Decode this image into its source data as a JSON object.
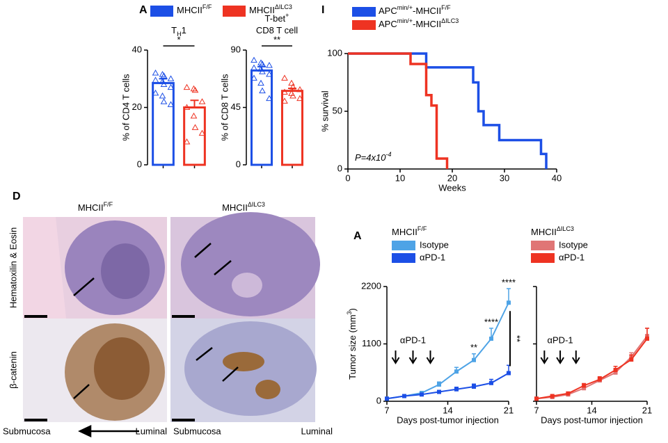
{
  "panel_labels": [
    "A",
    "I",
    "D",
    "A"
  ],
  "histology": {
    "columns": [
      [
        "MHCII",
        "F/F"
      ],
      [
        "MHCII",
        "ΔILC3"
      ]
    ],
    "rows": [
      "Hematoxilin & Eosin",
      "β-catenin"
    ],
    "orientation": [
      "Submucosa",
      "Luminal"
    ]
  },
  "chart_data": [
    {
      "type": "bar",
      "title": [
        [
          "T",
          "H",
          "1"
        ]
      ],
      "title_script": "sub",
      "ylabel": "% of CD4 T cells",
      "ylim": [
        0,
        40
      ],
      "yticks": [
        0,
        20,
        40
      ],
      "significance": "*",
      "legend": true,
      "series": [
        {
          "name": [
            "MHCII",
            "F/F"
          ],
          "color": "#1c4fe6",
          "values": [
            28.5
          ],
          "errors": [
            1.5
          ],
          "points": [
            32,
            31.5,
            31,
            30,
            29.5,
            29,
            28,
            27,
            25,
            24,
            22,
            21
          ]
        },
        {
          "name": [
            "MHCII",
            "ΔILC3"
          ],
          "color": "#ee3322",
          "values": [
            20
          ],
          "errors": [
            2.5
          ],
          "points": [
            27,
            26.5,
            26,
            22,
            20,
            17,
            13,
            11,
            8
          ]
        }
      ]
    },
    {
      "type": "bar",
      "title": [
        [
          "T-bet",
          "+"
        ],
        [
          "CD8 T cell"
        ]
      ],
      "title_script": "super",
      "ylabel": "% of CD8 T cells",
      "ylim": [
        0,
        90
      ],
      "yticks": [
        0,
        45,
        90
      ],
      "significance": "**",
      "legend": false,
      "series": [
        {
          "color": "#1c4fe6",
          "values": [
            74
          ],
          "errors": [
            3
          ],
          "points": [
            82,
            80,
            79,
            78,
            76,
            75,
            73,
            71,
            68,
            64,
            58,
            52
          ]
        },
        {
          "color": "#ee3322",
          "values": [
            58
          ],
          "errors": [
            2
          ],
          "points": [
            68,
            64,
            61,
            59,
            57,
            56,
            54,
            52,
            50
          ]
        }
      ]
    },
    {
      "type": "step",
      "xlabel": "Weeks",
      "ylabel": "% survival",
      "xlim": [
        0,
        40
      ],
      "xticks": [
        0,
        10,
        20,
        30,
        40
      ],
      "ylim": [
        0,
        100
      ],
      "yticks": [
        0,
        50,
        100
      ],
      "annotation": [
        "P=4x10",
        "-4"
      ],
      "series": [
        {
          "name": [
            "APC",
            "min/+",
            "-MHCII",
            "F/F"
          ],
          "color": "#1c4fe6",
          "x": [
            0,
            15,
            24,
            25,
            26,
            29,
            37,
            38
          ],
          "values": [
            100,
            88,
            75,
            50,
            38,
            25,
            13,
            0
          ]
        },
        {
          "name": [
            "APC",
            "min/+",
            "-MHCII",
            "ΔILC3"
          ],
          "color": "#ee3322",
          "x": [
            0,
            12,
            15,
            16,
            17,
            19
          ],
          "values": [
            100,
            91,
            64,
            55,
            9,
            0
          ]
        }
      ]
    },
    {
      "type": "line",
      "legend_title": [
        "MHCII",
        "F/F"
      ],
      "xlabel": "Days post-tumor injection",
      "ylabel": [
        "Tumor size (mm",
        "3",
        ")"
      ],
      "xlim": [
        7,
        21
      ],
      "xticks": [
        7,
        14,
        21
      ],
      "ylim": [
        0,
        2200
      ],
      "yticks": [
        0,
        1100,
        2200
      ],
      "show_ytick_labels": true,
      "treatment_label": "αPD-1",
      "treatment_days": [
        8,
        10,
        12
      ],
      "annotations": [
        {
          "x": 17,
          "text": "**"
        },
        {
          "x": 19,
          "text": "****"
        },
        {
          "x": 21,
          "text": "****"
        }
      ],
      "comparison_label": "**",
      "series": [
        {
          "name": "Isotype",
          "color": "#4ea3e6",
          "x": [
            7,
            9,
            11,
            13,
            15,
            17,
            19,
            21
          ],
          "values": [
            50,
            100,
            160,
            320,
            570,
            790,
            1200,
            1890
          ],
          "errors": [
            20,
            20,
            30,
            50,
            80,
            120,
            200,
            270
          ]
        },
        {
          "name": "αPD-1",
          "color": "#1c4fe6",
          "x": [
            7,
            9,
            11,
            13,
            15,
            17,
            19,
            21
          ],
          "values": [
            50,
            100,
            130,
            180,
            230,
            280,
            350,
            540
          ],
          "errors": [
            10,
            15,
            20,
            30,
            40,
            50,
            70,
            150
          ]
        }
      ]
    },
    {
      "type": "line",
      "legend_title": [
        "MHCII",
        "ΔILC3"
      ],
      "xlabel": "Days post-tumor injection",
      "xlim": [
        7,
        21
      ],
      "xticks": [
        7,
        14,
        21
      ],
      "ylim": [
        0,
        2200
      ],
      "yticks": [
        0,
        1100,
        2200
      ],
      "show_ytick_labels": false,
      "treatment_label": "αPD-1",
      "treatment_days": [
        8,
        10,
        12
      ],
      "series": [
        {
          "name": "Isotype",
          "color": "#e07575",
          "x": [
            7,
            9,
            11,
            13,
            15,
            17,
            19,
            21
          ],
          "values": [
            50,
            80,
            130,
            250,
            400,
            550,
            850,
            1250
          ],
          "errors": [
            15,
            20,
            25,
            40,
            50,
            60,
            80,
            150
          ]
        },
        {
          "name": "αPD-1",
          "color": "#ee3322",
          "x": [
            7,
            9,
            11,
            13,
            15,
            17,
            19,
            21
          ],
          "values": [
            50,
            100,
            150,
            300,
            420,
            600,
            800,
            1200
          ],
          "errors": [
            15,
            20,
            25,
            40,
            50,
            70,
            90,
            200
          ]
        }
      ]
    }
  ]
}
